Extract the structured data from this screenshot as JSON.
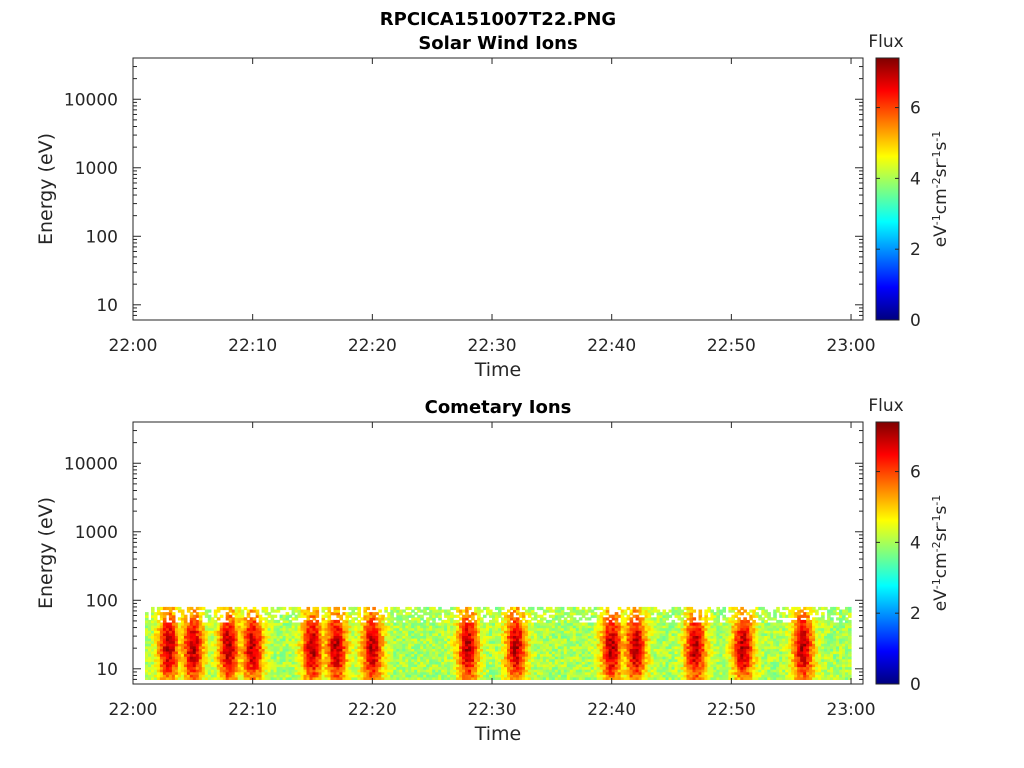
{
  "figure": {
    "title": "RPCICA151007T22.PNG"
  },
  "chart_data": [
    {
      "type": "heatmap",
      "title": "Solar Wind Ions",
      "xlabel": "Time",
      "ylabel": "Energy (eV)",
      "xticks": [
        "22:00",
        "22:10",
        "22:20",
        "22:30",
        "22:40",
        "22:50",
        "23:00"
      ],
      "xlim": [
        "22:00",
        "23:01"
      ],
      "yscale": "log",
      "yticks": [
        10,
        100,
        1000,
        10000
      ],
      "yticklabels": [
        "10",
        "100",
        "1000",
        "10000"
      ],
      "ylim": [
        6,
        40000
      ],
      "colorbar": {
        "title": "Flux",
        "label": "eV-1cm-2sr-1s-1",
        "ticks": [
          "0",
          "2",
          "4",
          "6"
        ],
        "range": [
          0,
          7.4
        ],
        "colormap": "jet"
      },
      "data": []
    },
    {
      "type": "heatmap",
      "title": "Cometary Ions",
      "xlabel": "Time",
      "ylabel": "Energy (eV)",
      "xticks": [
        "22:00",
        "22:10",
        "22:20",
        "22:30",
        "22:40",
        "22:50",
        "23:00"
      ],
      "xlim": [
        "22:00",
        "23:01"
      ],
      "yscale": "log",
      "yticks": [
        10,
        100,
        1000,
        10000
      ],
      "yticklabels": [
        "10",
        "100",
        "1000",
        "10000"
      ],
      "ylim": [
        6,
        40000
      ],
      "colorbar": {
        "title": "Flux",
        "label": "eV-1cm-2sr-1s-1",
        "ticks": [
          "0",
          "2",
          "4",
          "6"
        ],
        "range": [
          0,
          7.4
        ],
        "colormap": "jet"
      },
      "energy_range_eV": [
        7,
        80
      ],
      "time_range": [
        "22:01",
        "23:00"
      ],
      "peak_flux_times": [
        "22:03",
        "22:05",
        "22:08",
        "22:10",
        "22:15",
        "22:17",
        "22:20",
        "22:28",
        "22:32",
        "22:40",
        "22:42",
        "22:47",
        "22:51",
        "22:56"
      ],
      "peak_flux_value": 7.0,
      "background_flux_value": 4.0
    }
  ]
}
